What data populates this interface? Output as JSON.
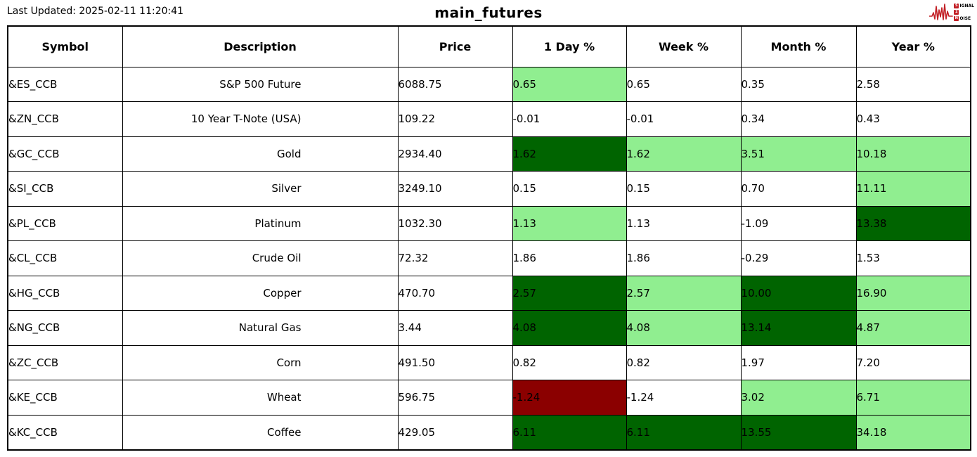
{
  "header": {
    "last_updated": "Last Updated: 2025-02-11 11:20:41",
    "title": "main_futures"
  },
  "logo": {
    "name": "signal-2-noise-logo",
    "line1_boxed": "S",
    "line1_rest": "IGNAL",
    "line2_boxed": "2",
    "line3_boxed": "N",
    "line3_rest": "OISE",
    "accent_color": "#c22026"
  },
  "colors": {
    "strong_positive_bg": "#006400",
    "mild_positive_bg": "#90EE90",
    "strong_negative_bg": "#8B0000",
    "border": "#000000",
    "background": "#ffffff"
  },
  "chart_data": {
    "type": "table",
    "title": "main_futures",
    "columns": [
      "Symbol",
      "Description",
      "Price",
      "1 Day %",
      "Week %",
      "Month %",
      "Year %"
    ],
    "rows": [
      {
        "symbol": "&ES_CCB",
        "description": "S&P 500 Future",
        "price": "6088.75",
        "day_pct": "0.65",
        "week_pct": "0.65",
        "month_pct": "0.35",
        "year_pct": "2.58",
        "hl": {
          "day": "light-green",
          "week": "none",
          "month": "none",
          "year": "none"
        }
      },
      {
        "symbol": "&ZN_CCB",
        "description": "10 Year T-Note (USA)",
        "price": "109.22",
        "day_pct": "-0.01",
        "week_pct": "-0.01",
        "month_pct": "0.34",
        "year_pct": "0.43",
        "hl": {
          "day": "none",
          "week": "none",
          "month": "none",
          "year": "none"
        }
      },
      {
        "symbol": "&GC_CCB",
        "description": "Gold",
        "price": "2934.40",
        "day_pct": "1.62",
        "week_pct": "1.62",
        "month_pct": "3.51",
        "year_pct": "10.18",
        "hl": {
          "day": "dark-green",
          "week": "light-green",
          "month": "light-green",
          "year": "light-green"
        }
      },
      {
        "symbol": "&SI_CCB",
        "description": "Silver",
        "price": "3249.10",
        "day_pct": "0.15",
        "week_pct": "0.15",
        "month_pct": "0.70",
        "year_pct": "11.11",
        "hl": {
          "day": "none",
          "week": "none",
          "month": "none",
          "year": "light-green"
        }
      },
      {
        "symbol": "&PL_CCB",
        "description": "Platinum",
        "price": "1032.30",
        "day_pct": "1.13",
        "week_pct": "1.13",
        "month_pct": "-1.09",
        "year_pct": "13.38",
        "hl": {
          "day": "light-green",
          "week": "none",
          "month": "none",
          "year": "dark-green"
        }
      },
      {
        "symbol": "&CL_CCB",
        "description": "Crude Oil",
        "price": "72.32",
        "day_pct": "1.86",
        "week_pct": "1.86",
        "month_pct": "-0.29",
        "year_pct": "1.53",
        "hl": {
          "day": "none",
          "week": "none",
          "month": "none",
          "year": "none"
        }
      },
      {
        "symbol": "&HG_CCB",
        "description": "Copper",
        "price": "470.70",
        "day_pct": "2.57",
        "week_pct": "2.57",
        "month_pct": "10.00",
        "year_pct": "16.90",
        "hl": {
          "day": "dark-green",
          "week": "light-green",
          "month": "dark-green",
          "year": "light-green"
        }
      },
      {
        "symbol": "&NG_CCB",
        "description": "Natural Gas",
        "price": "3.44",
        "day_pct": "4.08",
        "week_pct": "4.08",
        "month_pct": "13.14",
        "year_pct": "4.87",
        "hl": {
          "day": "dark-green",
          "week": "light-green",
          "month": "dark-green",
          "year": "light-green"
        }
      },
      {
        "symbol": "&ZC_CCB",
        "description": "Corn",
        "price": "491.50",
        "day_pct": "0.82",
        "week_pct": "0.82",
        "month_pct": "1.97",
        "year_pct": "7.20",
        "hl": {
          "day": "none",
          "week": "none",
          "month": "none",
          "year": "none"
        }
      },
      {
        "symbol": "&KE_CCB",
        "description": "Wheat",
        "price": "596.75",
        "day_pct": "-1.24",
        "week_pct": "-1.24",
        "month_pct": "3.02",
        "year_pct": "6.71",
        "hl": {
          "day": "dark-red",
          "week": "none",
          "month": "light-green",
          "year": "light-green"
        }
      },
      {
        "symbol": "&KC_CCB",
        "description": "Coffee",
        "price": "429.05",
        "day_pct": "6.11",
        "week_pct": "6.11",
        "month_pct": "13.55",
        "year_pct": "34.18",
        "hl": {
          "day": "dark-green",
          "week": "dark-green",
          "month": "dark-green",
          "year": "light-green"
        }
      }
    ],
    "legend": "cell background encodes move strength: dark green = strong positive, light green = mild positive, dark red = strong negative",
    "grid": true
  }
}
